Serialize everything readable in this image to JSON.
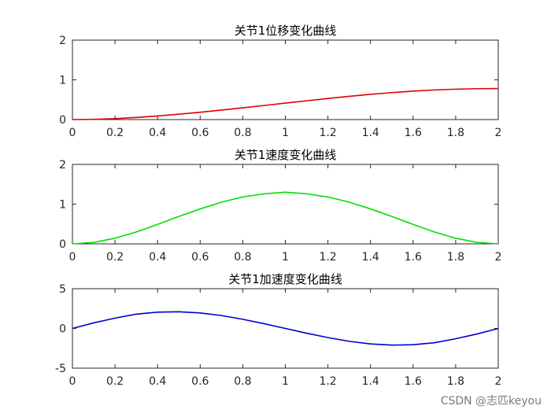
{
  "watermark": "CSDN @志匹keyou",
  "chart_data": [
    {
      "type": "line",
      "title": "关节1位移变化曲线",
      "xlim": [
        0,
        2
      ],
      "ylim": [
        0,
        2
      ],
      "xticks": [
        "0",
        "0.2",
        "0.4",
        "0.6",
        "0.8",
        "1",
        "1.2",
        "1.4",
        "1.6",
        "1.8",
        "2"
      ],
      "xtick_values": [
        0,
        0.2,
        0.4,
        0.6,
        0.8,
        1,
        1.2,
        1.4,
        1.6,
        1.8,
        2
      ],
      "yticks": [
        "0",
        "1",
        "2"
      ],
      "ytick_values": [
        0,
        1,
        2
      ],
      "grid": false,
      "series": [
        {
          "color": "#e00000",
          "x": [
            0,
            0.1,
            0.2,
            0.3,
            0.4,
            0.5,
            0.6,
            0.7,
            0.8,
            0.9,
            1.0,
            1.1,
            1.2,
            1.3,
            1.4,
            1.5,
            1.6,
            1.7,
            1.8,
            1.9,
            2.0
          ],
          "y": [
            0,
            0.006,
            0.024,
            0.053,
            0.09,
            0.134,
            0.184,
            0.238,
            0.295,
            0.354,
            0.414,
            0.473,
            0.531,
            0.585,
            0.634,
            0.678,
            0.716,
            0.745,
            0.765,
            0.777,
            0.78
          ]
        }
      ]
    },
    {
      "type": "line",
      "title": "关节1速度变化曲线",
      "xlim": [
        0,
        2
      ],
      "ylim": [
        0,
        2
      ],
      "xticks": [
        "0",
        "0.2",
        "0.4",
        "0.6",
        "0.8",
        "1",
        "1.2",
        "1.4",
        "1.6",
        "1.8",
        "2"
      ],
      "xtick_values": [
        0,
        0.2,
        0.4,
        0.6,
        0.8,
        1,
        1.2,
        1.4,
        1.6,
        1.8,
        2
      ],
      "yticks": [
        "0",
        "1",
        "2"
      ],
      "ytick_values": [
        0,
        1,
        2
      ],
      "grid": false,
      "series": [
        {
          "color": "#00e000",
          "x": [
            0,
            0.1,
            0.2,
            0.3,
            0.4,
            0.5,
            0.6,
            0.7,
            0.8,
            0.9,
            1.0,
            1.1,
            1.2,
            1.3,
            1.4,
            1.5,
            1.6,
            1.7,
            1.8,
            1.9,
            2.0
          ],
          "y": [
            0,
            0.037,
            0.142,
            0.3,
            0.49,
            0.69,
            0.88,
            1.05,
            1.18,
            1.26,
            1.3,
            1.26,
            1.18,
            1.05,
            0.88,
            0.69,
            0.49,
            0.3,
            0.142,
            0.037,
            0
          ]
        }
      ]
    },
    {
      "type": "line",
      "title": "关节1加速度变化曲线",
      "xlim": [
        0,
        2
      ],
      "ylim": [
        -5,
        5
      ],
      "xticks": [
        "0",
        "0.2",
        "0.4",
        "0.6",
        "0.8",
        "1",
        "1.2",
        "1.4",
        "1.6",
        "1.8",
        "2"
      ],
      "xtick_values": [
        0,
        0.2,
        0.4,
        0.6,
        0.8,
        1,
        1.2,
        1.4,
        1.6,
        1.8,
        2
      ],
      "yticks": [
        "-5",
        "0",
        "5"
      ],
      "ytick_values": [
        -5,
        0,
        5
      ],
      "grid": false,
      "series": [
        {
          "color": "#0000d0",
          "x": [
            0,
            0.1,
            0.2,
            0.3,
            0.4,
            0.5,
            0.6,
            0.7,
            0.8,
            0.9,
            1.0,
            1.1,
            1.2,
            1.3,
            1.4,
            1.5,
            1.6,
            1.7,
            1.8,
            1.9,
            2.0
          ],
          "y": [
            0,
            0.7,
            1.3,
            1.8,
            2.05,
            2.1,
            1.95,
            1.62,
            1.15,
            0.6,
            0,
            -0.6,
            -1.15,
            -1.62,
            -1.95,
            -2.1,
            -2.05,
            -1.8,
            -1.3,
            -0.7,
            0
          ]
        }
      ]
    }
  ]
}
